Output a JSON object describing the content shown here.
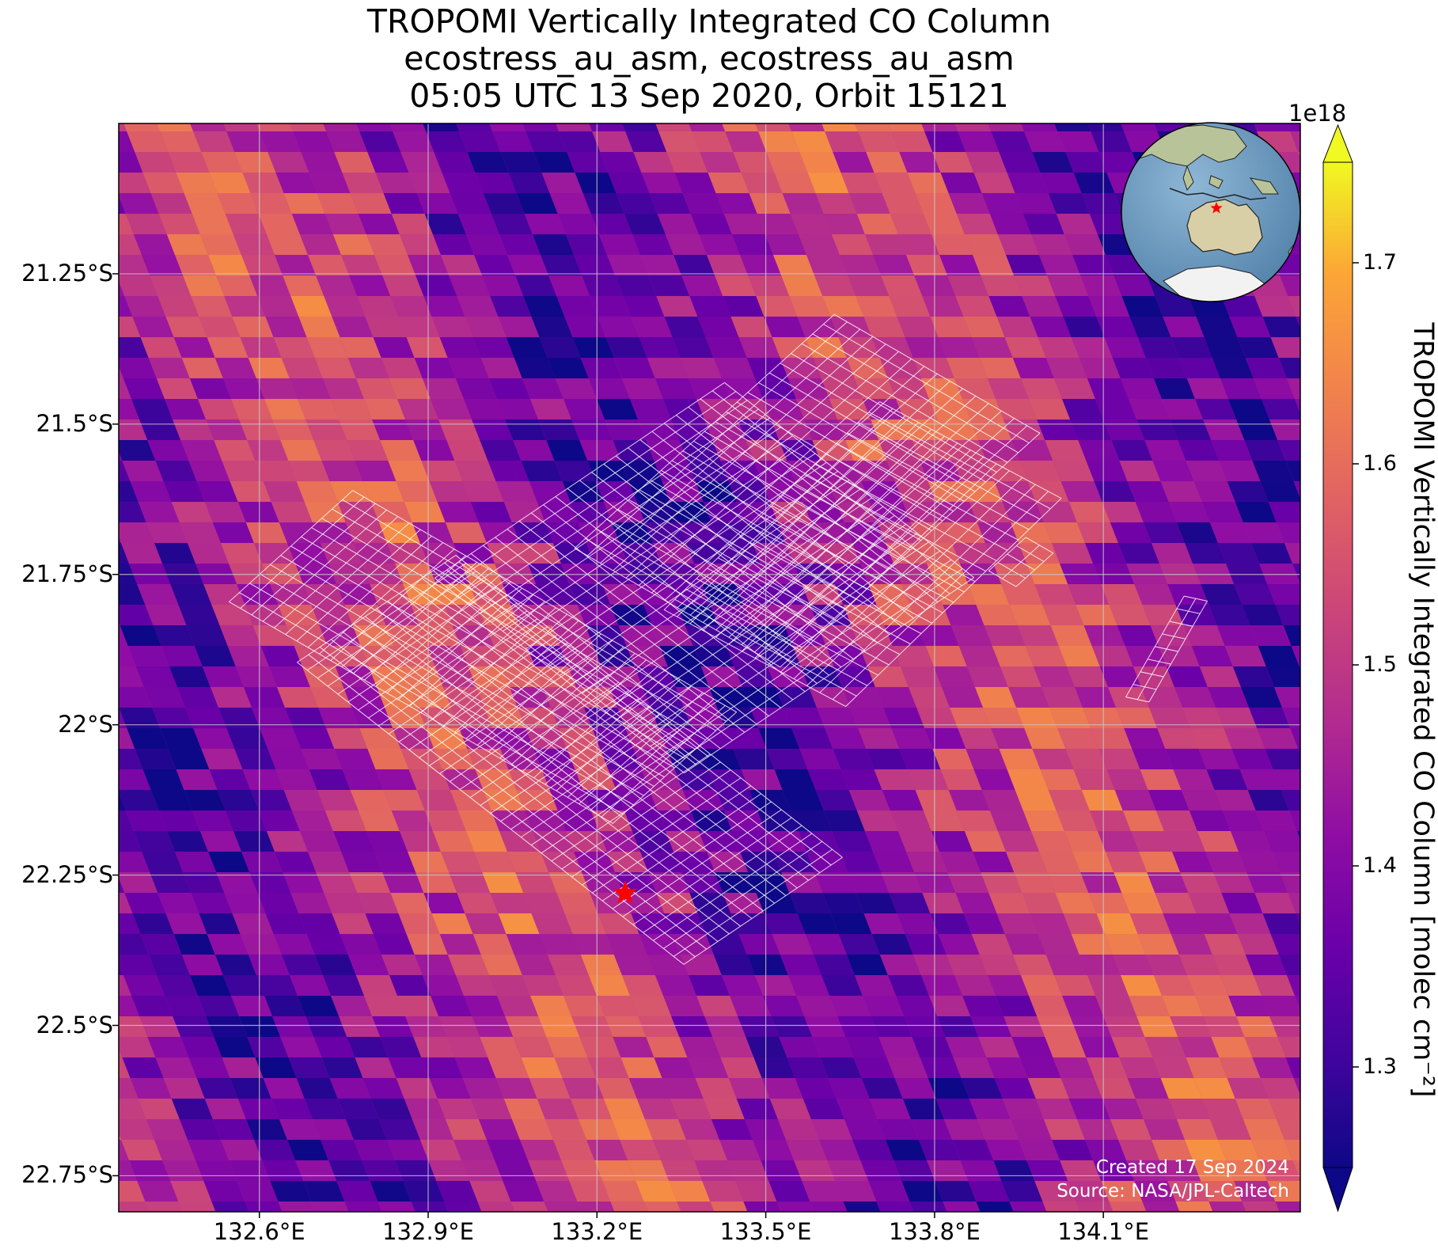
{
  "title": {
    "line1": "TROPOMI Vertically Integrated CO Column",
    "line2": "ecostress_au_asm, ecostress_au_asm",
    "line3": "05:05 UTC 13 Sep 2020, Orbit 15121"
  },
  "axes": {
    "lat_labels": [
      "21.25°S",
      "21.5°S",
      "21.75°S",
      "22°S",
      "22.25°S",
      "22.5°S",
      "22.75°S"
    ],
    "lat_values": [
      -21.25,
      -21.5,
      -21.75,
      -22.0,
      -22.25,
      -22.5,
      -22.75
    ],
    "lon_labels": [
      "132.6°E",
      "132.9°E",
      "133.2°E",
      "133.5°E",
      "133.8°E",
      "134.1°E"
    ],
    "lon_values": [
      132.6,
      132.9,
      133.2,
      133.5,
      133.8,
      134.1
    ],
    "lon_range": [
      132.35,
      134.45
    ],
    "lat_range": [
      -22.81,
      -21.0
    ],
    "grid": true
  },
  "colorbar": {
    "offset_label": "1e18",
    "tick_labels": [
      "1.3",
      "1.4",
      "1.5",
      "1.6",
      "1.7"
    ],
    "tick_values": [
      1.3,
      1.4,
      1.5,
      1.6,
      1.7
    ],
    "range": [
      1.25,
      1.75
    ],
    "label": "TROPOMI Vertically Integrated CO Column [molec cm⁻²]",
    "colormap": "plasma",
    "extend": "both"
  },
  "target_marker": {
    "name": "target-star",
    "lon": 133.25,
    "lat": -22.28,
    "color": "#ff0000"
  },
  "inset_globe": {
    "description": "orthographic globe centered on Australia with red star marker",
    "ocean_color": "#6f9fc4",
    "land_color": "#d8d2b4"
  },
  "credits": {
    "created": "Created 17 Sep 2024",
    "source": "Source: NASA/JPL-Caltech"
  }
}
